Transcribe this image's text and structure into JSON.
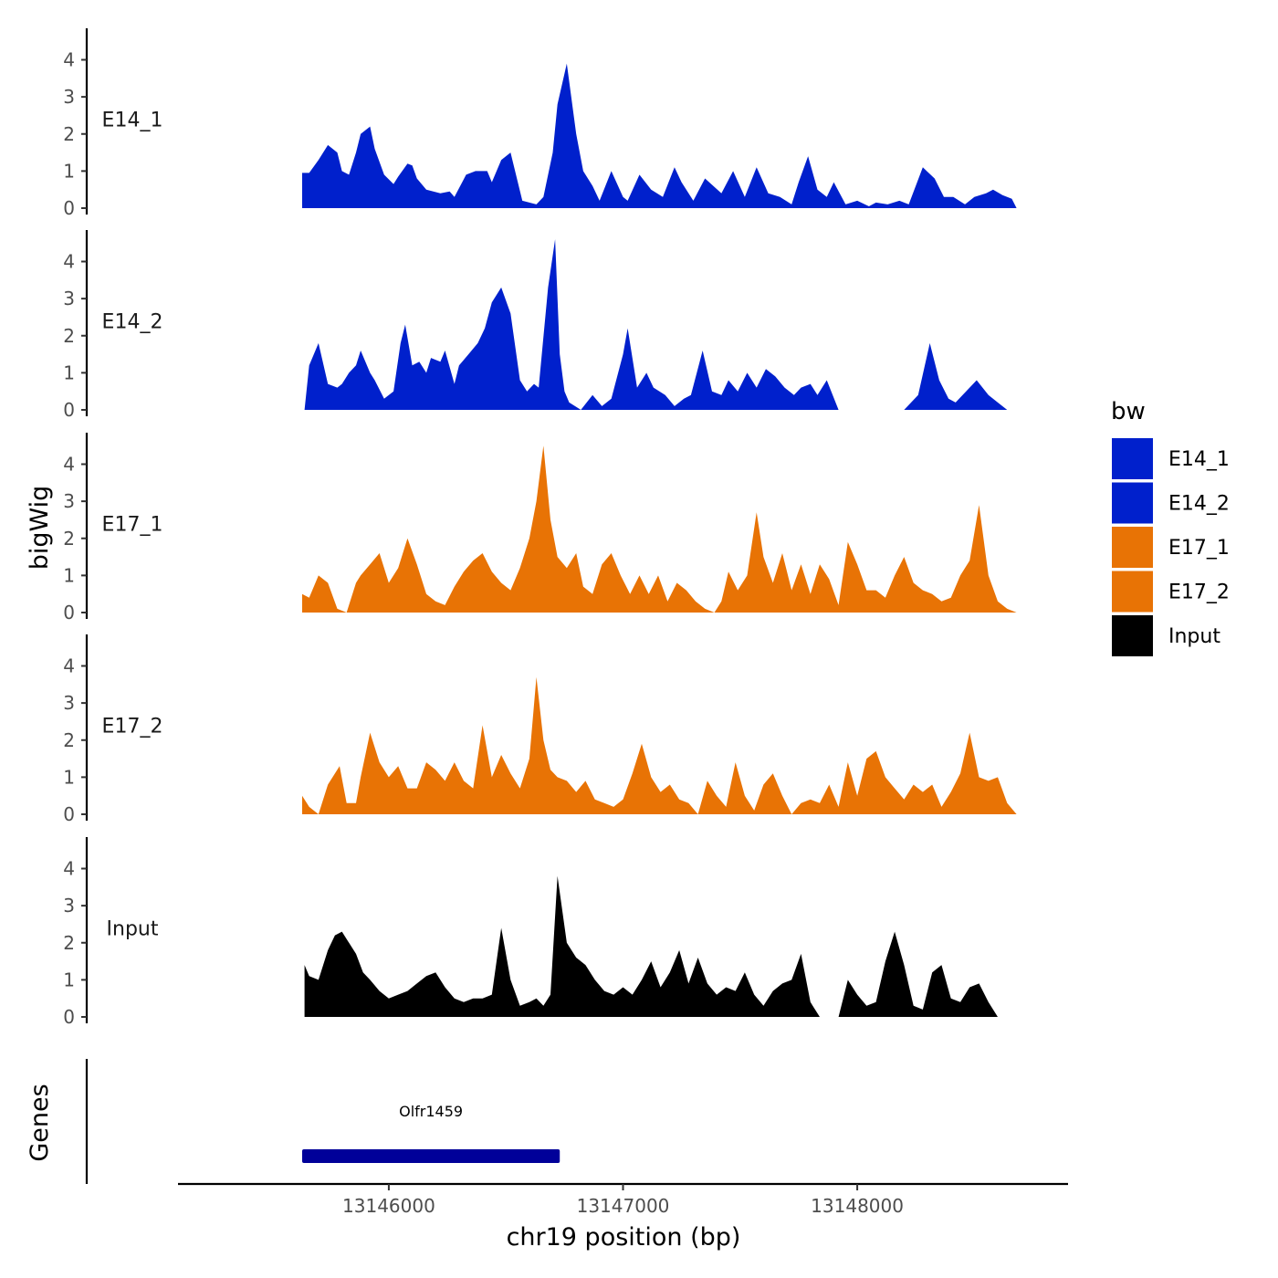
{
  "chart_data": {
    "type": "area",
    "title": "",
    "xlabel": "chr19 position (bp)",
    "ylabel": "bigWig",
    "genes_label": "Genes",
    "xlim": [
      13145100,
      13148900
    ],
    "x_ticks": [
      13146000,
      13147000,
      13148000
    ],
    "x_tick_labels": [
      "13146000",
      "13147000",
      "13148000"
    ],
    "ylim": [
      0,
      4.8
    ],
    "y_ticks": [
      0,
      1,
      2,
      3,
      4
    ],
    "y_tick_labels": [
      "0",
      "1",
      "2",
      "3",
      "4"
    ],
    "legend": {
      "title": "bw",
      "position": "right",
      "entries": [
        {
          "name": "E14_1",
          "color": "#0020cc"
        },
        {
          "name": "E14_2",
          "color": "#0020cc"
        },
        {
          "name": "E17_1",
          "color": "#e87305"
        },
        {
          "name": "E17_2",
          "color": "#e87305"
        },
        {
          "name": "Input",
          "color": "#000000"
        }
      ]
    },
    "series": [
      {
        "name": "E14_1",
        "color": "#0020cc",
        "x": [
          13145630,
          13145660,
          13145700,
          13145740,
          13145780,
          13145800,
          13145830,
          13145860,
          13145880,
          13145920,
          13145940,
          13145980,
          13146020,
          13146040,
          13146080,
          13146100,
          13146120,
          13146160,
          13146220,
          13146260,
          13146280,
          13146330,
          13146370,
          13146420,
          13146440,
          13146480,
          13146520,
          13146570,
          13146630,
          13146660,
          13146700,
          13146720,
          13146760,
          13146800,
          13146830,
          13146870,
          13146900,
          13146950,
          13147000,
          13147020,
          13147070,
          13147120,
          13147170,
          13147220,
          13147250,
          13147300,
          13147350,
          13147420,
          13147470,
          13147520,
          13147570,
          13147620,
          13147670,
          13147720,
          13147750,
          13147790,
          13147830,
          13147870,
          13147900,
          13147950,
          13148000,
          13148050,
          13148080,
          13148130,
          13148180,
          13148220,
          13148280,
          13148330,
          13148370,
          13148410,
          13148460,
          13148500,
          13148550,
          13148580,
          13148620,
          13148660,
          13148680
        ],
        "y": [
          0.95,
          0.95,
          1.3,
          1.7,
          1.5,
          1.0,
          0.9,
          1.5,
          2.0,
          2.2,
          1.6,
          0.9,
          0.65,
          0.85,
          1.2,
          1.15,
          0.8,
          0.5,
          0.4,
          0.45,
          0.3,
          0.9,
          1.0,
          1.0,
          0.7,
          1.3,
          1.5,
          0.2,
          0.1,
          0.3,
          1.5,
          2.8,
          3.9,
          2.0,
          1.0,
          0.6,
          0.2,
          1.0,
          0.3,
          0.2,
          0.9,
          0.5,
          0.3,
          1.1,
          0.7,
          0.2,
          0.8,
          0.4,
          1.0,
          0.3,
          1.1,
          0.4,
          0.3,
          0.1,
          0.7,
          1.4,
          0.5,
          0.3,
          0.7,
          0.1,
          0.2,
          0.05,
          0.15,
          0.1,
          0.2,
          0.1,
          1.1,
          0.8,
          0.3,
          0.3,
          0.1,
          0.3,
          0.4,
          0.5,
          0.35,
          0.25,
          0.0
        ]
      },
      {
        "name": "E14_2",
        "color": "#0020cc",
        "x": [
          13145640,
          13145660,
          13145700,
          13145740,
          13145780,
          13145800,
          13145830,
          13145860,
          13145880,
          13145920,
          13145940,
          13145980,
          13146020,
          13146050,
          13146070,
          13146100,
          13146130,
          13146160,
          13146180,
          13146220,
          13146240,
          13146280,
          13146300,
          13146340,
          13146380,
          13146410,
          13146440,
          13146480,
          13146520,
          13146560,
          13146590,
          13146620,
          13146640,
          13146680,
          13146710,
          13146730,
          13146750,
          13146770,
          13146820,
          13146870,
          13146910,
          13146950,
          13147000,
          13147020,
          13147060,
          13147100,
          13147130,
          13147180,
          13147220,
          13147260,
          13147290,
          13147340,
          13147380,
          13147420,
          13147450,
          13147490,
          13147530,
          13147570,
          13147610,
          13147650,
          13147690,
          13147730,
          13147760,
          13147800,
          13147830,
          13147870,
          13147920,
          13147960,
          13148010,
          13148050,
          13148100,
          13148150,
          13148200,
          13148260,
          13148310,
          13148350,
          13148390,
          13148420,
          13148450,
          13148510,
          13148560,
          13148600,
          13148640,
          13148660
        ],
        "y": [
          0.0,
          1.2,
          1.8,
          0.7,
          0.6,
          0.7,
          1.0,
          1.2,
          1.6,
          1.0,
          0.8,
          0.3,
          0.5,
          1.8,
          2.3,
          1.2,
          1.3,
          1.0,
          1.4,
          1.3,
          1.6,
          0.7,
          1.2,
          1.5,
          1.8,
          2.2,
          2.9,
          3.3,
          2.6,
          0.8,
          0.5,
          0.7,
          0.6,
          3.3,
          4.6,
          1.5,
          0.5,
          0.2,
          0.0,
          0.4,
          0.1,
          0.3,
          1.5,
          2.2,
          0.6,
          1.0,
          0.6,
          0.4,
          0.1,
          0.3,
          0.4,
          1.6,
          0.5,
          0.4,
          0.8,
          0.5,
          1.0,
          0.6,
          1.1,
          0.9,
          0.6,
          0.4,
          0.6,
          0.7,
          0.4,
          0.8,
          0.0,
          0.0,
          0.0,
          0.0,
          0.0,
          0.0,
          0.0,
          0.4,
          1.8,
          0.8,
          0.3,
          0.2,
          0.4,
          0.8,
          0.4,
          0.2,
          0.0,
          0.0
        ]
      },
      {
        "name": "E17_1",
        "color": "#e87305",
        "x": [
          13145630,
          13145660,
          13145700,
          13145740,
          13145780,
          13145820,
          13145860,
          13145880,
          13145920,
          13145960,
          13146000,
          13146040,
          13146080,
          13146120,
          13146160,
          13146200,
          13146240,
          13146280,
          13146320,
          13146360,
          13146400,
          13146440,
          13146480,
          13146520,
          13146560,
          13146600,
          13146630,
          13146660,
          13146690,
          13146720,
          13146760,
          13146800,
          13146830,
          13146870,
          13146910,
          13146950,
          13146990,
          13147030,
          13147070,
          13147110,
          13147150,
          13147190,
          13147230,
          13147270,
          13147310,
          13147350,
          13147390,
          13147420,
          13147450,
          13147490,
          13147530,
          13147570,
          13147600,
          13147640,
          13147680,
          13147720,
          13147760,
          13147800,
          13147840,
          13147880,
          13147920,
          13147960,
          13148000,
          13148040,
          13148080,
          13148120,
          13148160,
          13148200,
          13148240,
          13148280,
          13148320,
          13148360,
          13148400,
          13148440,
          13148480,
          13148520,
          13148560,
          13148600,
          13148640,
          13148680
        ],
        "y": [
          0.5,
          0.4,
          1.0,
          0.8,
          0.1,
          0.0,
          0.8,
          1.0,
          1.3,
          1.6,
          0.8,
          1.2,
          2.0,
          1.3,
          0.5,
          0.3,
          0.2,
          0.7,
          1.1,
          1.4,
          1.6,
          1.1,
          0.8,
          0.6,
          1.2,
          2.0,
          3.0,
          4.5,
          2.5,
          1.5,
          1.2,
          1.6,
          0.7,
          0.5,
          1.3,
          1.6,
          1.0,
          0.5,
          1.0,
          0.5,
          1.0,
          0.3,
          0.8,
          0.6,
          0.3,
          0.1,
          0.0,
          0.3,
          1.1,
          0.6,
          1.0,
          2.7,
          1.5,
          0.8,
          1.6,
          0.6,
          1.3,
          0.5,
          1.3,
          0.9,
          0.2,
          1.9,
          1.3,
          0.6,
          0.6,
          0.4,
          1.0,
          1.5,
          0.8,
          0.6,
          0.5,
          0.3,
          0.4,
          1.0,
          1.4,
          2.9,
          1.0,
          0.3,
          0.1,
          0.0
        ]
      },
      {
        "name": "E17_2",
        "color": "#e87305",
        "x": [
          13145630,
          13145660,
          13145700,
          13145740,
          13145790,
          13145820,
          13145860,
          13145880,
          13145920,
          13145960,
          13146000,
          13146040,
          13146080,
          13146120,
          13146160,
          13146200,
          13146240,
          13146280,
          13146320,
          13146360,
          13146400,
          13146440,
          13146480,
          13146520,
          13146560,
          13146600,
          13146630,
          13146660,
          13146690,
          13146720,
          13146760,
          13146800,
          13146840,
          13146880,
          13146920,
          13146960,
          13147000,
          13147040,
          13147080,
          13147120,
          13147160,
          13147200,
          13147240,
          13147280,
          13147320,
          13147360,
          13147400,
          13147440,
          13147480,
          13147520,
          13147560,
          13147600,
          13147640,
          13147680,
          13147720,
          13147760,
          13147800,
          13147840,
          13147880,
          13147920,
          13147960,
          13148000,
          13148040,
          13148080,
          13148120,
          13148160,
          13148200,
          13148240,
          13148280,
          13148320,
          13148360,
          13148400,
          13148440,
          13148480,
          13148520,
          13148560,
          13148600,
          13148640,
          13148680
        ],
        "y": [
          0.5,
          0.2,
          0.0,
          0.8,
          1.3,
          0.3,
          0.3,
          1.0,
          2.2,
          1.4,
          1.0,
          1.3,
          0.7,
          0.7,
          1.4,
          1.2,
          0.9,
          1.4,
          0.9,
          0.7,
          2.4,
          1.0,
          1.6,
          1.1,
          0.7,
          1.5,
          3.7,
          2.0,
          1.2,
          1.0,
          0.9,
          0.6,
          0.9,
          0.4,
          0.3,
          0.2,
          0.4,
          1.1,
          1.9,
          1.0,
          0.6,
          0.8,
          0.4,
          0.3,
          0.0,
          0.9,
          0.5,
          0.2,
          1.4,
          0.5,
          0.1,
          0.8,
          1.1,
          0.5,
          0.0,
          0.3,
          0.4,
          0.3,
          0.8,
          0.2,
          1.4,
          0.5,
          1.5,
          1.7,
          1.0,
          0.7,
          0.4,
          0.8,
          0.6,
          0.8,
          0.2,
          0.6,
          1.1,
          2.2,
          1.0,
          0.9,
          1.0,
          0.3,
          0.0
        ]
      },
      {
        "name": "Input",
        "color": "#000000",
        "x": [
          13145640,
          13145660,
          13145700,
          13145740,
          13145770,
          13145800,
          13145830,
          13145860,
          13145890,
          13145920,
          13145960,
          13146000,
          13146040,
          13146080,
          13146120,
          13146160,
          13146200,
          13146240,
          13146280,
          13146320,
          13146360,
          13146400,
          13146440,
          13146480,
          13146520,
          13146560,
          13146600,
          13146630,
          13146660,
          13146690,
          13146720,
          13146760,
          13146800,
          13146840,
          13146880,
          13146920,
          13146960,
          13147000,
          13147040,
          13147080,
          13147120,
          13147160,
          13147200,
          13147240,
          13147280,
          13147320,
          13147360,
          13147400,
          13147440,
          13147480,
          13147520,
          13147560,
          13147600,
          13147640,
          13147680,
          13147720,
          13147760,
          13147800,
          13147840,
          13147880,
          13147920,
          13147960,
          13148000,
          13148040,
          13148080,
          13148120,
          13148160,
          13148200,
          13148240,
          13148280,
          13148320,
          13148360,
          13148400,
          13148440,
          13148480,
          13148520,
          13148560,
          13148600,
          13148640
        ],
        "y": [
          1.4,
          1.1,
          1.0,
          1.8,
          2.2,
          2.3,
          2.0,
          1.7,
          1.2,
          1.0,
          0.7,
          0.5,
          0.6,
          0.7,
          0.9,
          1.1,
          1.2,
          0.8,
          0.5,
          0.4,
          0.5,
          0.5,
          0.6,
          2.4,
          1.0,
          0.3,
          0.4,
          0.5,
          0.3,
          0.6,
          3.8,
          2.0,
          1.6,
          1.4,
          1.0,
          0.7,
          0.6,
          0.8,
          0.6,
          1.0,
          1.5,
          0.8,
          1.2,
          1.8,
          0.9,
          1.6,
          0.9,
          0.6,
          0.8,
          0.7,
          1.2,
          0.6,
          0.3,
          0.7,
          0.9,
          1.0,
          1.7,
          0.4,
          0.0,
          0.0,
          0.0,
          1.0,
          0.6,
          0.3,
          0.4,
          1.5,
          2.3,
          1.4,
          0.3,
          0.2,
          1.2,
          1.4,
          0.5,
          0.4,
          0.8,
          0.9,
          0.4,
          0.0,
          0.0
        ]
      }
    ],
    "genes": [
      {
        "name": "Olfr1459",
        "start": 13145630,
        "end": 13146730,
        "color": "#000099"
      }
    ]
  }
}
